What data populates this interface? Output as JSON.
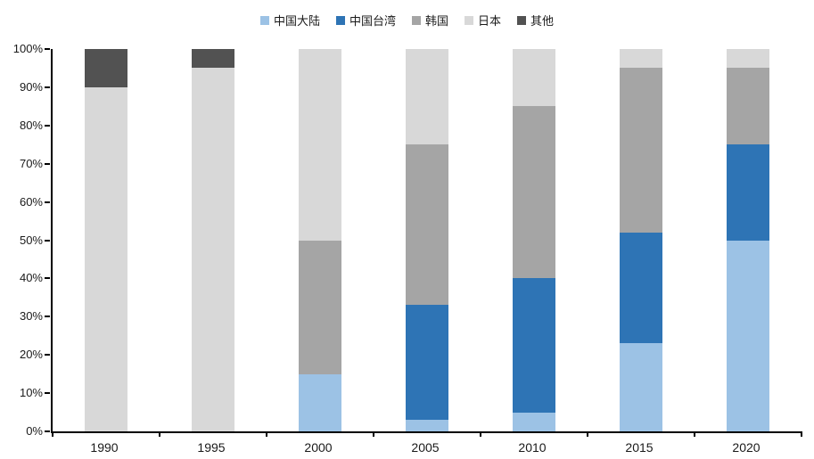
{
  "chart_data": {
    "type": "bar",
    "stacked": true,
    "percent_stacked": true,
    "title": "",
    "xlabel": "",
    "ylabel": "",
    "categories": [
      "1990",
      "1995",
      "2000",
      "2005",
      "2010",
      "2015",
      "2020"
    ],
    "series": [
      {
        "name": "中国大陆",
        "color": "#9CC2E5",
        "values": [
          0,
          0,
          15,
          3,
          5,
          23,
          50
        ]
      },
      {
        "name": "中国台湾",
        "color": "#2E74B5",
        "values": [
          0,
          0,
          0,
          30,
          35,
          29,
          25
        ]
      },
      {
        "name": "韩国",
        "color": "#A5A5A5",
        "values": [
          0,
          0,
          35,
          42,
          45,
          43,
          20
        ]
      },
      {
        "name": "日本",
        "color": "#D8D8D8",
        "values": [
          90,
          95,
          50,
          25,
          15,
          5,
          5
        ]
      },
      {
        "name": "其他",
        "color": "#525252",
        "values": [
          10,
          5,
          0,
          0,
          0,
          0,
          0
        ]
      }
    ],
    "y_ticks": [
      "0%",
      "10%",
      "20%",
      "30%",
      "40%",
      "50%",
      "60%",
      "70%",
      "80%",
      "90%",
      "100%"
    ],
    "ylim": [
      0,
      100
    ],
    "legend_position": "top",
    "grid": false,
    "axis_color": "#000000",
    "text_color": "#1a1a1a",
    "background_color": "#ffffff"
  }
}
